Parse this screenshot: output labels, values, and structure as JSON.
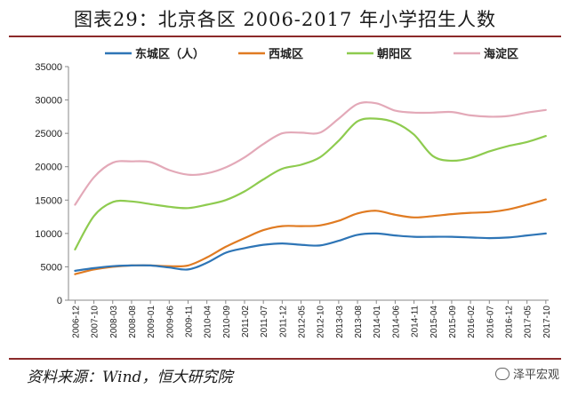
{
  "title": "图表29：北京各区 2006-2017 年小学招生人数",
  "source": "资料来源：Wind，恒大研究院",
  "watermark": "泽平宏观",
  "chart_data": {
    "type": "line",
    "title": "图表29：北京各区 2006-2017 年小学招生人数",
    "xlabel": "",
    "ylabel": "",
    "ylim": [
      0,
      35000
    ],
    "yticks": [
      0,
      5000,
      10000,
      15000,
      20000,
      25000,
      30000,
      35000
    ],
    "grid": false,
    "legend_position": "top",
    "x": [
      "2006-12",
      "2007-10",
      "2008-03",
      "2008-08",
      "2009-01",
      "2009-06",
      "2009-11",
      "2010-04",
      "2010-09",
      "2011-02",
      "2011-07",
      "2011-12",
      "2012-05",
      "2012-10",
      "2013-03",
      "2013-08",
      "2014-01",
      "2014-06",
      "2014-11",
      "2015-04",
      "2015-09",
      "2016-02",
      "2016-07",
      "2016-12",
      "2017-05",
      "2017-10"
    ],
    "series": [
      {
        "name": "东城区（人）",
        "color": "#2e75b6",
        "values": [
          4400,
          4800,
          5100,
          5200,
          5200,
          4900,
          4600,
          5600,
          7100,
          7800,
          8300,
          8500,
          8300,
          8200,
          8900,
          9800,
          10000,
          9700,
          9500,
          9500,
          9500,
          9400,
          9300,
          9400,
          9700,
          10000
        ]
      },
      {
        "name": "西城区",
        "color": "#e07b22",
        "values": [
          3900,
          4600,
          5000,
          5200,
          5200,
          5100,
          5200,
          6400,
          8000,
          9300,
          10500,
          11100,
          11100,
          11200,
          11900,
          13000,
          13400,
          12800,
          12400,
          12600,
          12900,
          13100,
          13200,
          13600,
          14300,
          15100
        ]
      },
      {
        "name": "朝阳区",
        "color": "#8ecb4f",
        "values": [
          7600,
          12600,
          14700,
          14800,
          14400,
          14000,
          13800,
          14300,
          15000,
          16300,
          18100,
          19700,
          20300,
          21400,
          23900,
          26800,
          27200,
          26600,
          24800,
          21600,
          20900,
          21300,
          22300,
          23100,
          23700,
          24600
        ]
      },
      {
        "name": "海淀区",
        "color": "#e3a9b8",
        "values": [
          14300,
          18400,
          20600,
          20800,
          20700,
          19500,
          18800,
          19000,
          19900,
          21400,
          23400,
          25000,
          25100,
          25100,
          27200,
          29400,
          29500,
          28400,
          28100,
          28100,
          28200,
          27700,
          27500,
          27600,
          28100,
          28500
        ]
      }
    ]
  }
}
